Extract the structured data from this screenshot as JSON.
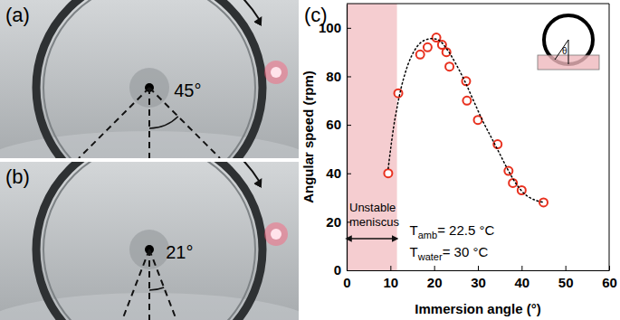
{
  "chart_data": {
    "type": "scatter",
    "panel_label": "(c)",
    "x_label": "Immersion angle (°)",
    "y_label": "Angular speed (rpm)",
    "xlim": [
      0,
      60
    ],
    "ylim": [
      0,
      110
    ],
    "xticks": [
      0,
      10,
      20,
      30,
      40,
      50,
      60
    ],
    "yticks": [
      0,
      20,
      40,
      60,
      80,
      100
    ],
    "grid": false,
    "series": [
      {
        "type": "scatter",
        "marker": "circle-open",
        "color": "#e8301e",
        "x": [
          9.5,
          11.8,
          16.8,
          18.5,
          20.5,
          21.8,
          22.8,
          23.5,
          27.3,
          27.5,
          30,
          34.5,
          37,
          38,
          40,
          45
        ],
        "values": [
          40,
          73,
          89,
          92,
          96,
          93,
          90,
          84,
          78,
          70,
          62,
          52,
          41,
          36,
          33,
          28
        ]
      },
      {
        "type": "line",
        "line_style": "dotted",
        "color": "#000000",
        "x": [
          9.5,
          11,
          13,
          15,
          17,
          19,
          21,
          23,
          25,
          27,
          29,
          31,
          33,
          35,
          37,
          39,
          41,
          43,
          45
        ],
        "values": [
          42,
          62,
          79,
          89,
          94,
          95.5,
          95,
          91,
          85,
          78,
          70,
          62,
          55,
          48,
          41,
          35,
          31,
          29,
          28
        ]
      }
    ],
    "shaded_region": {
      "x": [
        0,
        11.5
      ],
      "color": "#f5cdd0",
      "text": [
        "Unstable",
        "meniscus"
      ]
    },
    "annotations": [
      {
        "text": "T",
        "subscript": "amb",
        "after": "= 22.5 °C"
      },
      {
        "text": "T",
        "subscript": "water",
        "after": "= 30 °C"
      }
    ],
    "inset_label": "θ"
  },
  "photos": [
    {
      "label": "(a)",
      "angle": 45,
      "angle_label": "45°"
    },
    {
      "label": "(b)",
      "angle": 21,
      "angle_label": "21°"
    }
  ]
}
